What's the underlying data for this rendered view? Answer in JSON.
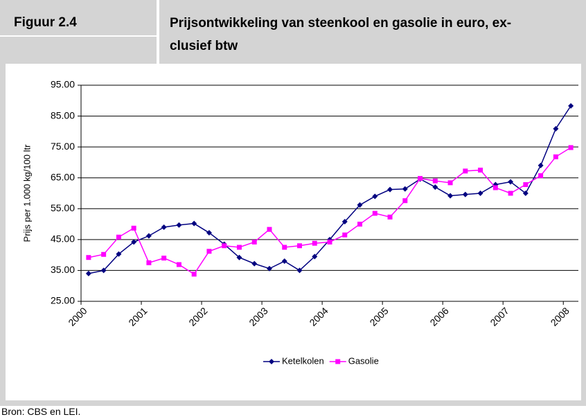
{
  "header": {
    "figure": "Figuur 2.4",
    "title": [
      "Prijsontwikkeling van steenkool en gasolie in euro, ex-",
      "clusief btw"
    ]
  },
  "chart_data": {
    "type": "line",
    "y_label": "Prijs per 1.000 kg/100 ltr",
    "categories": [
      "2000",
      null,
      null,
      null,
      "2001",
      null,
      null,
      null,
      "2002",
      null,
      null,
      null,
      "2003",
      null,
      null,
      null,
      "2004",
      null,
      null,
      null,
      "2005",
      null,
      null,
      null,
      "2006",
      null,
      null,
      null,
      "2007",
      null,
      null,
      null,
      "2008"
    ],
    "series": [
      {
        "name": "Ketelkolen",
        "color": "#000080",
        "marker": "diamond",
        "values": [
          34.0,
          35.0,
          40.3,
          44.2,
          46.2,
          49.0,
          49.7,
          50.2,
          47.2,
          43.5,
          39.2,
          37.2,
          35.6,
          38.0,
          35.0,
          39.5,
          45.0,
          50.8,
          56.2,
          59.0,
          61.2,
          61.4,
          64.6,
          62.0,
          59.2,
          59.6,
          60.0,
          62.8,
          63.7,
          60.0,
          69.0,
          80.9,
          88.3
        ]
      },
      {
        "name": "Gasolie",
        "color": "#ff00ff",
        "marker": "square",
        "values": [
          39.2,
          40.2,
          45.8,
          48.7,
          37.5,
          39.0,
          36.9,
          33.8,
          41.2,
          43.0,
          42.5,
          44.2,
          48.3,
          42.5,
          43.0,
          43.8,
          44.2,
          46.5,
          50.0,
          53.5,
          52.3,
          57.6,
          64.8,
          64.0,
          63.4,
          67.2,
          67.5,
          61.8,
          60.0,
          62.8,
          65.7,
          71.8,
          74.8
        ]
      }
    ],
    "ylim": [
      25,
      95
    ],
    "yticks": [
      {
        "value": 25,
        "label": "25.00"
      },
      {
        "value": 35,
        "label": "35.00"
      },
      {
        "value": 45,
        "label": "45.00"
      },
      {
        "value": 55,
        "label": "55.00"
      },
      {
        "value": 65,
        "label": "65.00"
      },
      {
        "value": 75,
        "label": "75.00"
      },
      {
        "value": 85,
        "label": "85.00"
      },
      {
        "value": 95,
        "label": "95.00"
      }
    ],
    "grid": true,
    "legend": "bottom"
  },
  "source": "Bron: CBS en LEI."
}
